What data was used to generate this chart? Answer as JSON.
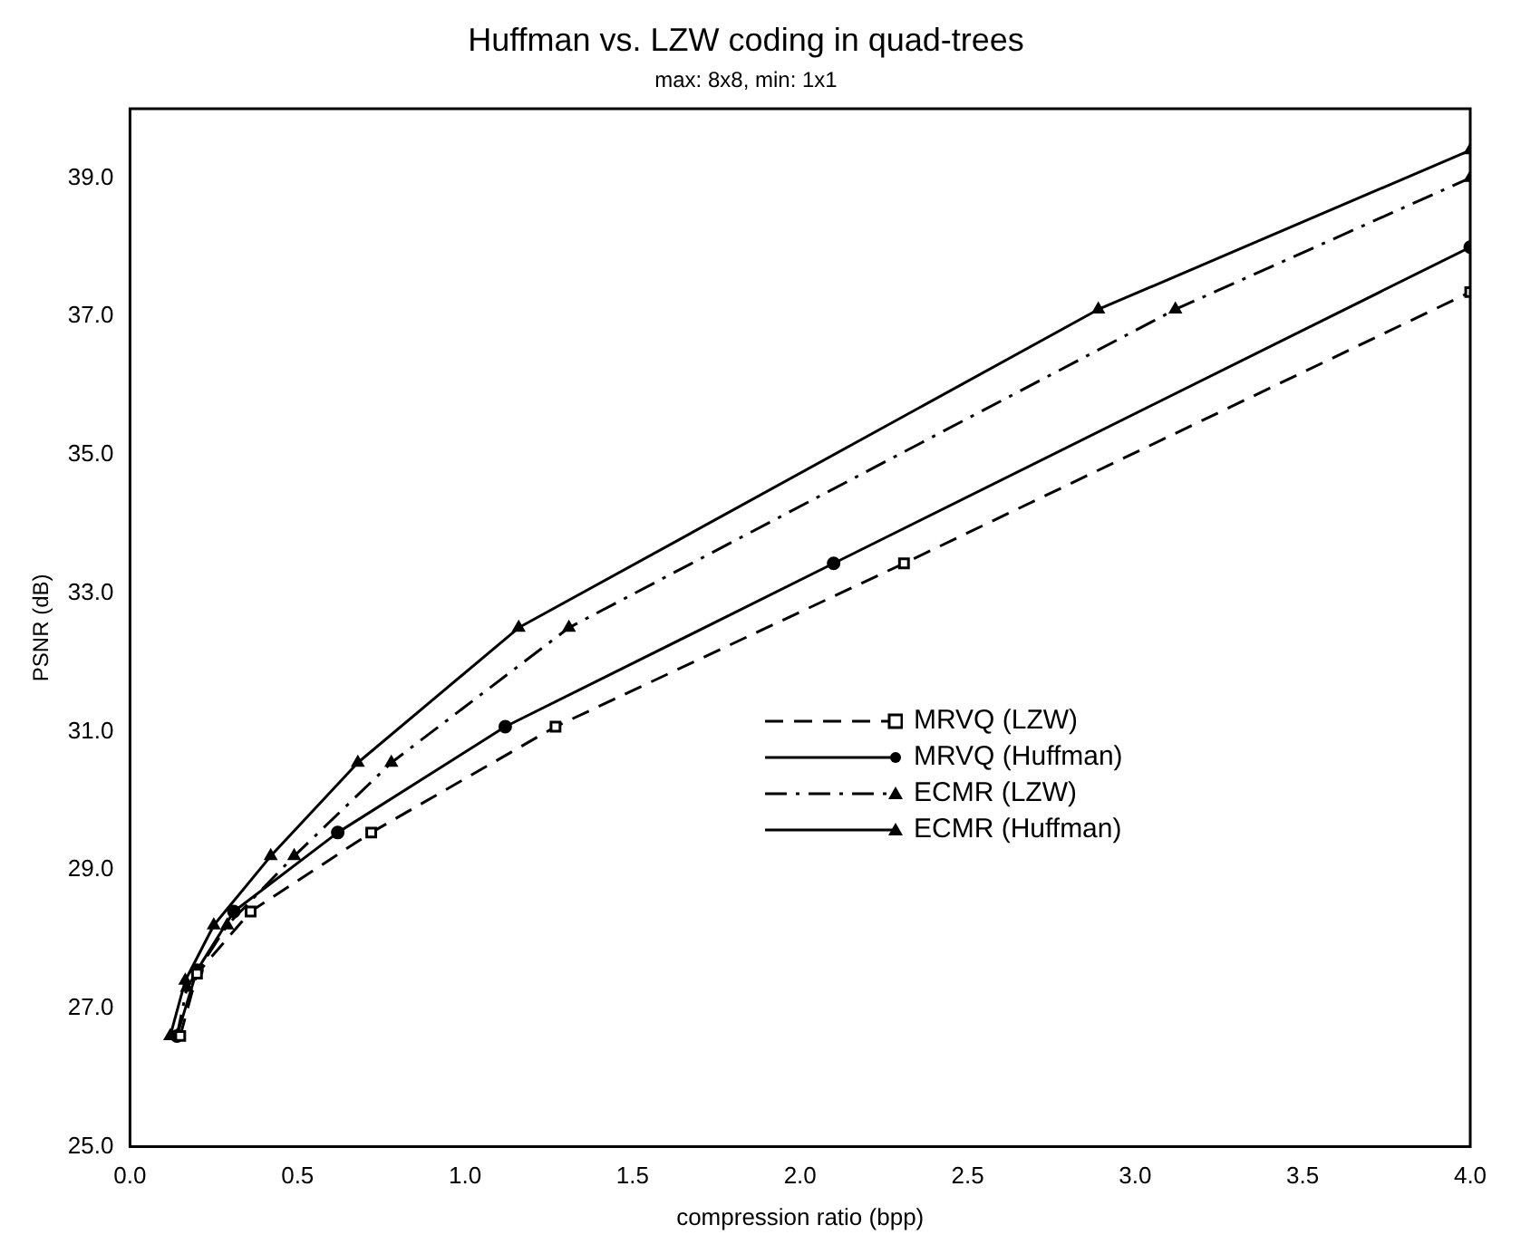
{
  "chart_data": {
    "type": "line",
    "title": "Huffman vs. LZW coding in quad-trees",
    "subtitle": "max: 8x8, min: 1x1",
    "xlabel": "compression ratio (bpp)",
    "ylabel": "PSNR (dB)",
    "xlim": [
      0,
      4
    ],
    "ylim": [
      25,
      40
    ],
    "xticks": [
      {
        "value": 0,
        "label": "0.0"
      },
      {
        "value": 0.5,
        "label": "0.5"
      },
      {
        "value": 1,
        "label": "1.0"
      },
      {
        "value": 1.5,
        "label": "1.5"
      },
      {
        "value": 2,
        "label": "2.0"
      },
      {
        "value": 2.5,
        "label": "2.5"
      },
      {
        "value": 3,
        "label": "3.0"
      },
      {
        "value": 3.5,
        "label": "3.5"
      },
      {
        "value": 4,
        "label": "4.0"
      }
    ],
    "yticks": [
      {
        "value": 25,
        "label": "25.0"
      },
      {
        "value": 27,
        "label": "27.0"
      },
      {
        "value": 29,
        "label": "29.0"
      },
      {
        "value": 31,
        "label": "31.0"
      },
      {
        "value": 33,
        "label": "33.0"
      },
      {
        "value": 35,
        "label": "35.0"
      },
      {
        "value": 37,
        "label": "37.0"
      },
      {
        "value": 39,
        "label": "39.0"
      }
    ],
    "grid": false,
    "legend": "bottom right",
    "series": [
      {
        "name": "MRVQ (LZW)",
        "color": "#000000",
        "line_style": "dashed",
        "marker": "square",
        "x": [
          0.15,
          0.2,
          0.36,
          0.72,
          1.27,
          2.31,
          4.0
        ],
        "values": [
          26.6,
          27.5,
          28.4,
          29.54,
          31.07,
          33.43,
          37.35
        ]
      },
      {
        "name": "MRVQ (Huffman)",
        "color": "#000000",
        "line_style": "solid",
        "marker": "circle",
        "x": [
          0.14,
          0.2,
          0.31,
          0.62,
          1.12,
          2.1,
          4.0
        ],
        "values": [
          26.6,
          27.55,
          28.4,
          29.54,
          31.07,
          33.43,
          38.0
        ]
      },
      {
        "name": "ECMR (LZW)",
        "color": "#000000",
        "line_style": "dashdot",
        "marker": "triangle",
        "x": [
          0.14,
          0.17,
          0.29,
          0.49,
          0.78,
          1.31,
          3.12,
          4.0
        ],
        "values": [
          26.6,
          27.3,
          28.2,
          29.2,
          30.55,
          32.5,
          37.1,
          39.0
        ]
      },
      {
        "name": "ECMR (Huffman)",
        "color": "#000000",
        "line_style": "solid",
        "marker": "triangle",
        "x": [
          0.12,
          0.165,
          0.25,
          0.42,
          0.68,
          1.16,
          2.89,
          4.0
        ],
        "values": [
          26.6,
          27.4,
          28.2,
          29.2,
          30.55,
          32.5,
          37.1,
          39.4
        ]
      }
    ]
  }
}
